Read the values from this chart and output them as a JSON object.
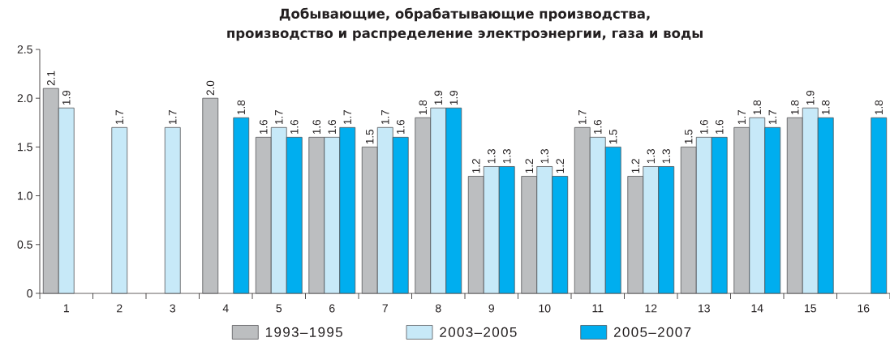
{
  "chart_data": {
    "type": "bar",
    "title": "Добывающие, обрабатывающие производства,\nпроизводство и распределение электроэнергии, газа и воды",
    "categories": [
      "1",
      "2",
      "3",
      "4",
      "5",
      "6",
      "7",
      "8",
      "9",
      "10",
      "11",
      "12",
      "13",
      "14",
      "15",
      "16"
    ],
    "series": [
      {
        "name": "1993–1995",
        "color": "#bcbec0",
        "values": [
          2.1,
          null,
          null,
          2.0,
          1.6,
          1.6,
          1.5,
          1.8,
          1.2,
          1.2,
          1.7,
          1.2,
          1.5,
          1.7,
          1.8,
          null
        ],
        "value_labels": [
          "2.1",
          null,
          null,
          "2.0",
          "1.6",
          "1.6",
          "1.5",
          "1.8",
          "1.2",
          "1.2",
          "1.7",
          "1.2",
          "1.5",
          "1.7",
          "1.8",
          null
        ]
      },
      {
        "name": "2003–2005",
        "color": "#c7e9f8",
        "values": [
          1.9,
          1.7,
          1.7,
          null,
          1.7,
          1.6,
          1.7,
          1.9,
          1.3,
          1.3,
          1.6,
          1.3,
          1.6,
          1.8,
          1.9,
          null
        ],
        "value_labels": [
          "1.9",
          "1.7",
          "1.7",
          null,
          "1.7",
          "1.6",
          "1.7",
          "1.9",
          "1.3",
          "1.3",
          "1.6",
          "1.3",
          "1.6",
          "1.8",
          "1.9",
          null
        ]
      },
      {
        "name": "2005–2007",
        "color": "#00aeef",
        "values": [
          null,
          null,
          null,
          1.8,
          1.6,
          1.7,
          1.6,
          1.9,
          1.3,
          1.2,
          1.5,
          1.3,
          1.6,
          1.7,
          1.8,
          1.8
        ],
        "value_labels": [
          null,
          null,
          null,
          "1.8",
          "1.6",
          "1.7",
          "1.6",
          "1.9",
          "1.3",
          "1.2",
          "1.5",
          "1.3",
          "1.6",
          "1.7",
          "1.8",
          "1.8"
        ]
      }
    ],
    "ylim": [
      0,
      2.5
    ],
    "yticks": [
      0,
      0.5,
      {
        "value": 1,
        "label": "1.0"
      },
      1.5,
      {
        "value": 2,
        "label": "2.0"
      },
      2.5
    ],
    "legend": "bottom"
  }
}
